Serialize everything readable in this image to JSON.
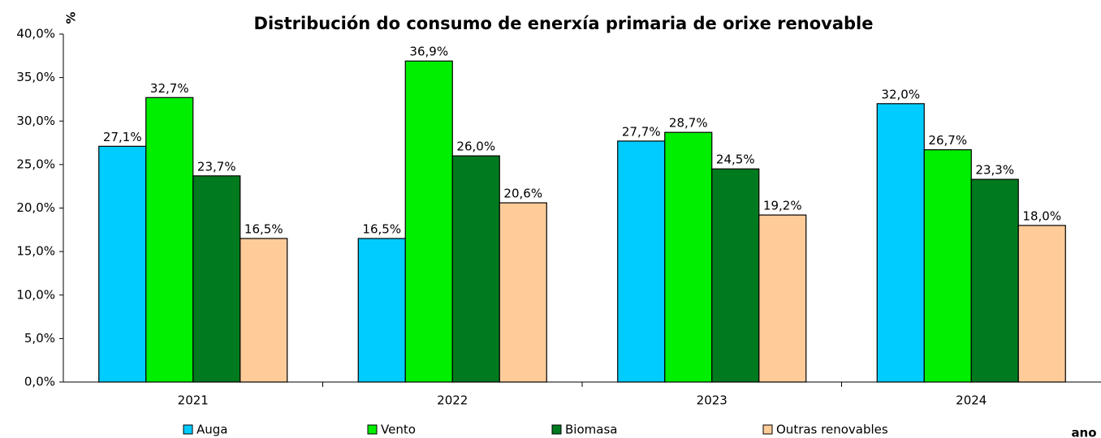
{
  "chart_data": {
    "type": "bar",
    "title": "Distribución do consumo de enerxía primaria de orixe renovable",
    "y_label": "%",
    "x_label": "ano",
    "categories": [
      "2021",
      "2022",
      "2023",
      "2024"
    ],
    "series": [
      {
        "name": "Auga",
        "color": "#00ccff",
        "values": [
          27.1,
          16.5,
          27.7,
          32.0
        ],
        "value_labels": [
          "27,1%",
          "16,5%",
          "27,7%",
          "32,0%"
        ]
      },
      {
        "name": "Vento",
        "color": "#00ee00",
        "values": [
          32.7,
          36.9,
          28.7,
          26.7
        ],
        "value_labels": [
          "32,7%",
          "36,9%",
          "28,7%",
          "26,7%"
        ]
      },
      {
        "name": "Biomasa",
        "color": "#007a1e",
        "values": [
          23.7,
          26.0,
          24.5,
          23.3
        ],
        "value_labels": [
          "23,7%",
          "26,0%",
          "24,5%",
          "23,3%"
        ]
      },
      {
        "name": "Outras renovables",
        "color": "#ffcc99",
        "values": [
          16.5,
          20.6,
          19.2,
          18.0
        ],
        "value_labels": [
          "16,5%",
          "20,6%",
          "19,2%",
          "18,0%"
        ]
      }
    ],
    "ylim": [
      0,
      40
    ],
    "yticks": [
      {
        "value": 0,
        "label": "0,0%"
      },
      {
        "value": 5,
        "label": "5,0%"
      },
      {
        "value": 10,
        "label": "10,0%"
      },
      {
        "value": 15,
        "label": "15,0%"
      },
      {
        "value": 20,
        "label": "20,0%"
      },
      {
        "value": 25,
        "label": "25,0%"
      },
      {
        "value": 30,
        "label": "30,0%"
      },
      {
        "value": 35,
        "label": "35,0%"
      },
      {
        "value": 40,
        "label": "40,0%"
      }
    ],
    "grid": false
  }
}
